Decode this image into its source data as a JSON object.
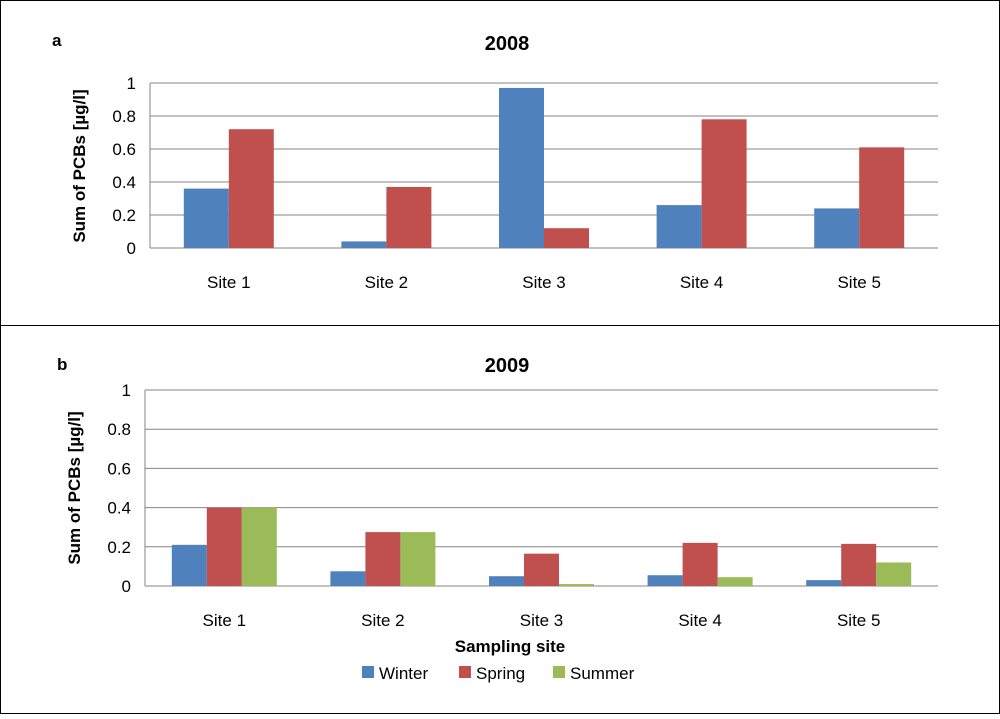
{
  "chart_data": [
    {
      "panel_label": "a",
      "type": "bar",
      "title": "2008",
      "ylabel": "Sum of PCBs [µg/l]",
      "xlabel": "",
      "ylim": [
        0,
        1
      ],
      "yticks": [
        0,
        0.2,
        0.4,
        0.6,
        0.8,
        1
      ],
      "ytick_labels": [
        "0",
        "0.2",
        "0.4",
        "0.6",
        "0.8",
        "1"
      ],
      "categories": [
        "Site 1",
        "Site 2",
        "Site 3",
        "Site 4",
        "Site 5"
      ],
      "series": [
        {
          "name": "Winter",
          "color": "#4f81bd",
          "values": [
            0.36,
            0.04,
            0.97,
            0.26,
            0.24
          ]
        },
        {
          "name": "Spring",
          "color": "#c0504d",
          "values": [
            0.72,
            0.37,
            0.12,
            0.78,
            0.61
          ]
        }
      ],
      "grid": true,
      "legend": "none"
    },
    {
      "panel_label": "b",
      "type": "bar",
      "title": "2009",
      "ylabel": "Sum of PCBs [µg/l]",
      "xlabel": "Sampling site",
      "ylim": [
        0,
        1
      ],
      "yticks": [
        0,
        0.2,
        0.4,
        0.6,
        0.8,
        1
      ],
      "ytick_labels": [
        "0",
        "0.2",
        "0.4",
        "0.6",
        "0.8",
        "1"
      ],
      "categories": [
        "Site 1",
        "Site 2",
        "Site 3",
        "Site 4",
        "Site 5"
      ],
      "series": [
        {
          "name": "Winter",
          "color": "#4f81bd",
          "values": [
            0.21,
            0.075,
            0.05,
            0.055,
            0.03
          ]
        },
        {
          "name": "Spring",
          "color": "#c0504d",
          "values": [
            0.4,
            0.275,
            0.165,
            0.22,
            0.215
          ]
        },
        {
          "name": "Summer",
          "color": "#9bbb59",
          "values": [
            0.4,
            0.275,
            0.01,
            0.045,
            0.12
          ]
        }
      ],
      "grid": true,
      "legend": "bottom-center"
    }
  ]
}
